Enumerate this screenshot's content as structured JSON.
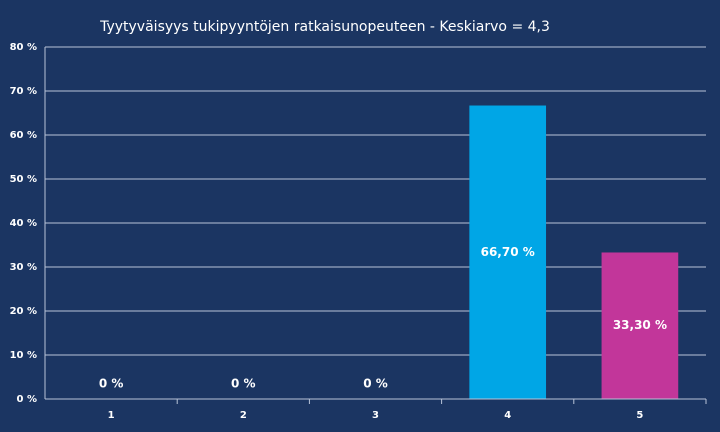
{
  "chart_data": {
    "type": "bar",
    "title": "Tyytyväisyys tukipyyntöjen  ratkaisunopeuteen  - Keskiarvo = 4,3",
    "categories": [
      "1",
      "2",
      "3",
      "4",
      "5"
    ],
    "values": [
      0,
      0,
      0,
      66.7,
      33.3
    ],
    "value_labels": [
      "0 %",
      "0 %",
      "0 %",
      "66,70 %",
      "33,30 %"
    ],
    "colors": [
      "#00a6e6",
      "#00a6e6",
      "#00a6e6",
      "#00a6e6",
      "#c2369a"
    ],
    "ylim": [
      0,
      80
    ],
    "yticks": [
      {
        "value": 0,
        "label": "0 %"
      },
      {
        "value": 10,
        "label": "10 %"
      },
      {
        "value": 20,
        "label": "20 %"
      },
      {
        "value": 30,
        "label": "30 %"
      },
      {
        "value": 40,
        "label": "40 %"
      },
      {
        "value": 50,
        "label": "50 %"
      },
      {
        "value": 60,
        "label": "60 %"
      },
      {
        "value": 70,
        "label": "70 %"
      },
      {
        "value": 80,
        "label": "80 %"
      }
    ],
    "grid": true
  }
}
